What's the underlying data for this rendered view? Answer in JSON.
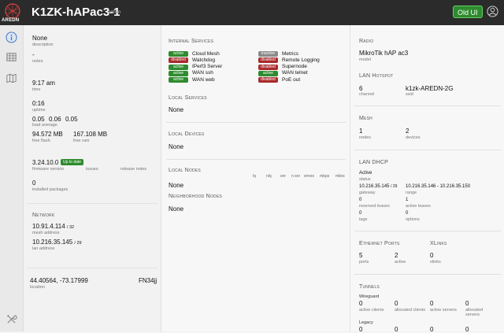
{
  "header": {
    "logo_text": "AREDN",
    "node_name": "K1ZK-hAPac3-1",
    "user": "admin",
    "old_ui_label": "Old UI"
  },
  "sidebar": {
    "icons": [
      "info-icon",
      "grid-icon",
      "map-icon",
      "tools-icon"
    ]
  },
  "general": {
    "description_value": "None",
    "description_label": "description",
    "notes_value": "-",
    "notes_label": "notes",
    "time_value": "9:17 am",
    "time_label": "time",
    "uptime_value": "0:16",
    "uptime_label": "uptime",
    "load_values": [
      "0.05",
      "0.06",
      "0.05"
    ],
    "load_label": "load average",
    "flash_value": "94.572 MB",
    "flash_label": "free flash",
    "ram_value": "167.108 MB",
    "ram_label": "free ram",
    "firmware_value": "3.24.10.0",
    "firmware_badge": "Up to date",
    "firmware_label": "firmware version",
    "issues_label": "issues",
    "release_notes_label": "release notes",
    "packages_value": "0",
    "packages_label": "installed packages"
  },
  "network": {
    "title": "Network",
    "mesh_ip": "10.91.4.114",
    "mesh_cidr": "/ 32",
    "mesh_label": "mesh address",
    "lan_ip": "10.216.35.145",
    "lan_cidr": "/ 29",
    "lan_label": "lan address"
  },
  "location": {
    "coords": "44.40564, -73.17999",
    "grid": "FN34jj",
    "label": "location"
  },
  "internal_services": {
    "title": "Internal Services",
    "items": [
      {
        "status": "active",
        "name": "Cloud Mesh"
      },
      {
        "status": "inactive",
        "name": "Metrics"
      },
      {
        "status": "disabled",
        "name": "Watchdog"
      },
      {
        "status": "disabled",
        "name": "Remote Logging"
      },
      {
        "status": "active",
        "name": "IPerf3 Server"
      },
      {
        "status": "disabled",
        "name": "Supernode"
      },
      {
        "status": "active",
        "name": "WAN ssh"
      },
      {
        "status": "active",
        "name": "WAN telnet"
      },
      {
        "status": "active",
        "name": "WAN web"
      },
      {
        "status": "disabled",
        "name": "PoE out"
      }
    ]
  },
  "local_services": {
    "title": "Local Services",
    "value": "None"
  },
  "local_devices": {
    "title": "Local Devices",
    "value": "None"
  },
  "local_nodes": {
    "title": "Local Nodes",
    "value": "None",
    "columns": [
      "lq",
      "nlq",
      "snr",
      "n snr",
      "errors",
      "mbps",
      "miles"
    ]
  },
  "neighborhood_nodes": {
    "title": "Neighborhood Nodes",
    "value": "None"
  },
  "radio": {
    "title": "Radio",
    "model_value": "MikroTik hAP ac3",
    "model_label": "model"
  },
  "lan_hotspot": {
    "title": "LAN Hotspot",
    "channel_value": "6",
    "channel_label": "channel",
    "ssid_value": "k1zk-AREDN-2G",
    "ssid_label": "ssid"
  },
  "mesh": {
    "title": "Mesh",
    "nodes_value": "1",
    "nodes_label": "nodes",
    "devices_value": "2",
    "devices_label": "devices"
  },
  "lan_dhcp": {
    "title": "LAN DHCP",
    "status_value": "Active",
    "status_label": "status",
    "gateway_value": "10.216.35.145",
    "gateway_cidr": "/ 29",
    "gateway_label": "gateway",
    "range_value": "10.216.35.146 - 10.216.35.150",
    "range_label": "range",
    "reserved_value": "0",
    "reserved_label": "reserved leases",
    "active_value": "1",
    "active_label": "active leases",
    "tags_value": "0",
    "tags_label": "tags",
    "options_value": "0",
    "options_label": "options"
  },
  "ports": {
    "title": "Ethernet Ports",
    "xlinks_title": "XLinks",
    "ports_value": "5",
    "ports_label": "ports",
    "active_value": "2",
    "active_label": "active",
    "xlinks_value": "0",
    "xlinks_label": "xlinks"
  },
  "tunnels": {
    "title": "Tunnels",
    "wireguard_label": "Wireguard",
    "legacy_label": "Legacy",
    "wg_values": [
      "0",
      "0",
      "0",
      "0"
    ],
    "wg_labels": [
      "active clients",
      "allocated clients",
      "active servers",
      "allocated servers"
    ],
    "legacy_values": [
      "0",
      "0",
      "0",
      "0"
    ]
  },
  "colors": {
    "header_bg": "#2b2b2b",
    "active": "#2e8b2e",
    "disabled": "#a92a2a",
    "inactive": "#8a8a8a"
  }
}
